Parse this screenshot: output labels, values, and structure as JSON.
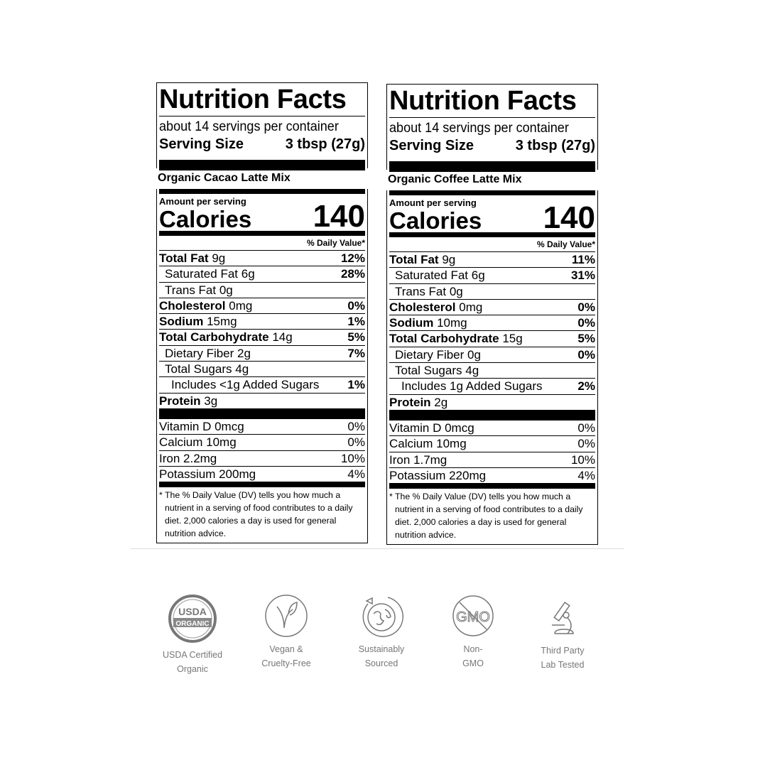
{
  "labels": [
    {
      "title": "Nutrition Facts",
      "servings": "about 14 servings per container",
      "serving_size_label": "Serving Size",
      "serving_size": "3 tbsp (27g)",
      "product": "Organic Cacao Latte Mix",
      "amount_per_serving": "Amount per serving",
      "calories_label": "Calories",
      "calories": "140",
      "dv_header": "% Daily Value*",
      "nutrients": [
        {
          "name": "Total Fat",
          "amount": "9g",
          "dv": "12%",
          "bold": true,
          "indent": 0
        },
        {
          "name": "Saturated Fat",
          "amount": "6g",
          "dv": "28%",
          "bold": false,
          "indent": 1
        },
        {
          "name": "Trans Fat",
          "amount": "0g",
          "dv": "",
          "bold": false,
          "indent": 1
        },
        {
          "name": "Cholesterol",
          "amount": "0mg",
          "dv": "0%",
          "bold": true,
          "indent": 0
        },
        {
          "name": "Sodium",
          "amount": "15mg",
          "dv": "1%",
          "bold": true,
          "indent": 0
        },
        {
          "name": "Total Carbohydrate",
          "amount": "14g",
          "dv": "5%",
          "bold": true,
          "indent": 0
        },
        {
          "name": "Dietary Fiber",
          "amount": "2g",
          "dv": "7%",
          "bold": false,
          "indent": 1
        },
        {
          "name": "Total Sugars",
          "amount": "4g",
          "dv": "",
          "bold": false,
          "indent": 1
        },
        {
          "name": "Includes <1g Added Sugars",
          "amount": "",
          "dv": "1%",
          "bold": false,
          "indent": 2
        },
        {
          "name": "Protein",
          "amount": "3g",
          "dv": "",
          "bold": true,
          "indent": 0
        }
      ],
      "vitamins": [
        {
          "name": "Vitamin D 0mcg",
          "dv": "0%"
        },
        {
          "name": "Calcium 10mg",
          "dv": "0%"
        },
        {
          "name": "Iron 2.2mg",
          "dv": "10%"
        },
        {
          "name": "Potassium 200mg",
          "dv": "4%"
        }
      ],
      "footnote": "* The % Daily Value (DV) tells you how much a nutrient in a serving of food contributes to a daily diet. 2,000 calories a day is used for general nutrition advice."
    },
    {
      "title": "Nutrition Facts",
      "servings": "about 14 servings per container",
      "serving_size_label": "Serving Size",
      "serving_size": "3 tbsp (27g)",
      "product": "Organic Coffee Latte Mix",
      "amount_per_serving": "Amount per serving",
      "calories_label": "Calories",
      "calories": "140",
      "dv_header": "% Daily Value*",
      "nutrients": [
        {
          "name": "Total Fat",
          "amount": "9g",
          "dv": "11%",
          "bold": true,
          "indent": 0
        },
        {
          "name": "Saturated Fat",
          "amount": "6g",
          "dv": "31%",
          "bold": false,
          "indent": 1
        },
        {
          "name": "Trans Fat",
          "amount": "0g",
          "dv": "",
          "bold": false,
          "indent": 1
        },
        {
          "name": "Cholesterol",
          "amount": "0mg",
          "dv": "0%",
          "bold": true,
          "indent": 0
        },
        {
          "name": "Sodium",
          "amount": "10mg",
          "dv": "0%",
          "bold": true,
          "indent": 0
        },
        {
          "name": "Total Carbohydrate",
          "amount": "15g",
          "dv": "5%",
          "bold": true,
          "indent": 0
        },
        {
          "name": "Dietary Fiber",
          "amount": "0g",
          "dv": "0%",
          "bold": false,
          "indent": 1
        },
        {
          "name": "Total Sugars",
          "amount": "4g",
          "dv": "",
          "bold": false,
          "indent": 1
        },
        {
          "name": "Includes 1g Added Sugars",
          "amount": "",
          "dv": "2%",
          "bold": false,
          "indent": 2
        },
        {
          "name": "Protein",
          "amount": "2g",
          "dv": "",
          "bold": true,
          "indent": 0
        }
      ],
      "vitamins": [
        {
          "name": "Vitamin D 0mcg",
          "dv": "0%"
        },
        {
          "name": "Calcium 10mg",
          "dv": "0%"
        },
        {
          "name": "Iron 1.7mg",
          "dv": "10%"
        },
        {
          "name": "Potassium 220mg",
          "dv": "4%"
        }
      ],
      "footnote": "* The % Daily Value (DV) tells you how much a nutrient in a serving of food contributes to a daily diet. 2,000 calories a day is used for general nutrition advice."
    }
  ],
  "badges": [
    {
      "icon": "usda-organic-icon",
      "line1": "USDA Certified",
      "line2": "Organic",
      "seal_top": "USDA",
      "seal_bottom": "ORGANIC"
    },
    {
      "icon": "vegan-leaf-icon",
      "line1": "Vegan &",
      "line2": "Cruelty-Free"
    },
    {
      "icon": "globe-icon",
      "line1": "Sustainably",
      "line2": "Sourced"
    },
    {
      "icon": "non-gmo-icon",
      "line1": "Non-",
      "line2": "GMO",
      "seal_text": "GMO"
    },
    {
      "icon": "microscope-icon",
      "line1": "Third Party",
      "line2": "Lab Tested"
    }
  ]
}
